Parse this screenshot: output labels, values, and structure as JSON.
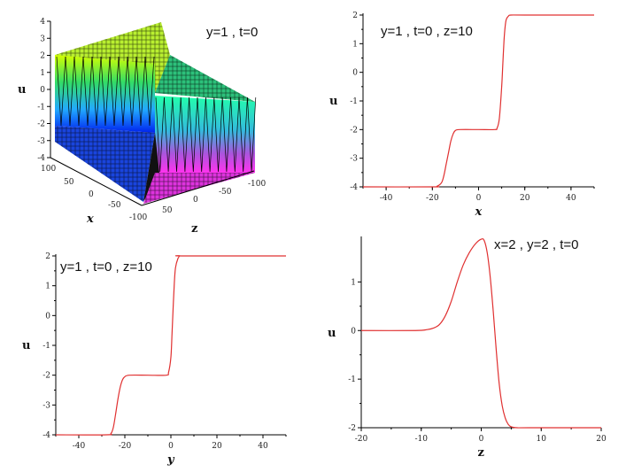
{
  "chart_data": [
    {
      "type": "surface3d",
      "annotation": "y=1 , t=0",
      "xlabel": "x",
      "ylabel": "z",
      "zlabel": "u",
      "u_ticks": [
        "4",
        "3",
        "2",
        "1",
        "0",
        "-1",
        "-2",
        "-3",
        "-4"
      ],
      "x_ticks": [
        "100",
        "50",
        "0",
        "-50",
        "-100"
      ],
      "z_ticks": [
        "-100",
        "-50",
        "0",
        "50"
      ],
      "u_range": [
        -4,
        4
      ],
      "x_range": [
        -100,
        100
      ],
      "z_range": [
        -100,
        100
      ],
      "levels": [
        2,
        -2,
        -4
      ],
      "colormap": [
        "#ff33ff",
        "#33ccff",
        "#0000ff",
        "#33ff99",
        "#ccff00"
      ]
    },
    {
      "type": "line",
      "annotation": "y=1 , t=0 , z=10",
      "xlabel": "x",
      "ylabel": "u",
      "xlim": [
        -50,
        50
      ],
      "ylim": [
        -4,
        2
      ],
      "x_ticks": [
        "-40",
        "-20",
        "0",
        "20",
        "40"
      ],
      "x_tick_values": [
        -40,
        -20,
        0,
        20,
        40
      ],
      "y_ticks": [
        "2",
        "1",
        "0",
        "-1",
        "-2",
        "-3",
        "-4"
      ],
      "y_tick_values": [
        2,
        1,
        0,
        -1,
        -2,
        -3,
        -4
      ],
      "series": [
        {
          "name": "u",
          "color": "#e03030",
          "x": [
            -50,
            -20,
            -18,
            -16,
            -15,
            -14,
            -13,
            -12,
            -11,
            -10,
            -8,
            0,
            7,
            8,
            9,
            10,
            10.5,
            11,
            11.5,
            12,
            13,
            14,
            20,
            50
          ],
          "y": [
            -4,
            -4,
            -3.98,
            -3.85,
            -3.6,
            -3.2,
            -2.8,
            -2.4,
            -2.15,
            -2.03,
            -2,
            -2,
            -2,
            -1.95,
            -1.6,
            -0.5,
            0.3,
            1.1,
            1.6,
            1.85,
            1.97,
            2,
            2,
            2
          ]
        }
      ]
    },
    {
      "type": "line",
      "annotation": "y=1 , t=0 , z=10",
      "xlabel": "y",
      "ylabel": "u",
      "xlim": [
        -50,
        50
      ],
      "ylim": [
        -4,
        2
      ],
      "x_ticks": [
        "-40",
        "-20",
        "0",
        "20",
        "40"
      ],
      "x_tick_values": [
        -40,
        -20,
        0,
        20,
        40
      ],
      "y_ticks": [
        "2",
        "1",
        "0",
        "-1",
        "-2",
        "-3",
        "-4"
      ],
      "y_tick_values": [
        2,
        1,
        0,
        -1,
        -2,
        -3,
        -4
      ],
      "series": [
        {
          "name": "u",
          "color": "#e03030",
          "x": [
            -50,
            -28,
            -26,
            -25,
            -24,
            -23,
            -22,
            -21,
            -20,
            -18,
            -10,
            -2,
            -1,
            0,
            0.5,
            1,
            1.5,
            2,
            3,
            4,
            6,
            50
          ],
          "y": [
            -4,
            -4,
            -3.95,
            -3.75,
            -3.3,
            -2.8,
            -2.4,
            -2.15,
            -2.05,
            -2,
            -2,
            -2,
            -1.9,
            -1.4,
            -0.6,
            0.3,
            1.1,
            1.6,
            1.9,
            2,
            2,
            2
          ]
        }
      ]
    },
    {
      "type": "line",
      "annotation": "x=2 , y=2 , t=0",
      "xlabel": "z",
      "ylabel": "u",
      "xlim": [
        -20,
        20
      ],
      "ylim": [
        -2,
        1.9
      ],
      "x_ticks": [
        "-20",
        "-10",
        "0",
        "10",
        "20"
      ],
      "x_tick_values": [
        -20,
        -10,
        0,
        10,
        20
      ],
      "y_ticks": [
        "1",
        "0",
        "-1",
        "-2"
      ],
      "y_tick_values": [
        1,
        0,
        -1,
        -2
      ],
      "series": [
        {
          "name": "u",
          "color": "#e03030",
          "x": [
            -20,
            -11,
            -9,
            -8,
            -7,
            -6,
            -5,
            -4,
            -3,
            -2,
            -1,
            0,
            0.5,
            1,
            1.5,
            2,
            2.5,
            3,
            3.5,
            4,
            4.5,
            5,
            6,
            8,
            20
          ],
          "y": [
            0,
            0,
            0.02,
            0.05,
            0.12,
            0.3,
            0.6,
            1.0,
            1.35,
            1.6,
            1.78,
            1.88,
            1.85,
            1.6,
            1.1,
            0.4,
            -0.4,
            -1.1,
            -1.55,
            -1.8,
            -1.93,
            -1.98,
            -2,
            -2,
            -2
          ]
        }
      ]
    }
  ]
}
